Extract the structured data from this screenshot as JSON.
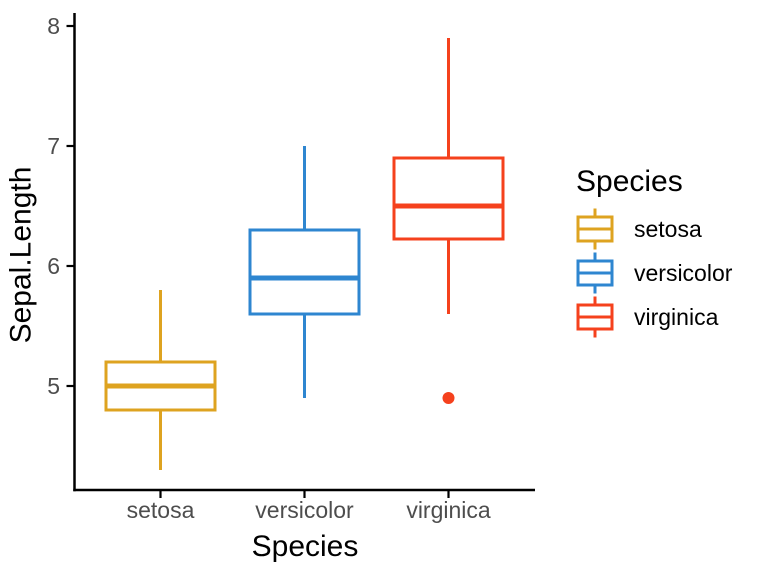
{
  "chart_data": {
    "type": "boxplot",
    "title": "",
    "xlabel": "Species",
    "ylabel": "Sepal.Length",
    "categories": [
      "setosa",
      "versicolor",
      "virginica"
    ],
    "y_ticks": [
      5,
      6,
      7,
      8
    ],
    "ylim": [
      4.13,
      8.1
    ],
    "grid": false,
    "background": "#ffffff",
    "axis_color": "#000000",
    "tick_label_color": "#4D4D4D",
    "series": [
      {
        "name": "setosa",
        "color": "#DEA320",
        "whisker_low": 4.3,
        "q1": 4.8,
        "median": 5.0,
        "q3": 5.2,
        "whisker_high": 5.8,
        "outliers": []
      },
      {
        "name": "versicolor",
        "color": "#2E86D0",
        "whisker_low": 4.9,
        "q1": 5.6,
        "median": 5.9,
        "q3": 6.3,
        "whisker_high": 7.0,
        "outliers": []
      },
      {
        "name": "virginica",
        "color": "#F5411D",
        "whisker_low": 5.6,
        "q1": 6.225,
        "median": 6.5,
        "q3": 6.9,
        "whisker_high": 7.9,
        "outliers": [
          4.9
        ]
      }
    ],
    "legend": {
      "position": "right",
      "title": "Species",
      "entries": [
        {
          "label": "setosa",
          "color": "#DEA320"
        },
        {
          "label": "versicolor",
          "color": "#2E86D0"
        },
        {
          "label": "virginica",
          "color": "#F5411D"
        }
      ]
    }
  }
}
